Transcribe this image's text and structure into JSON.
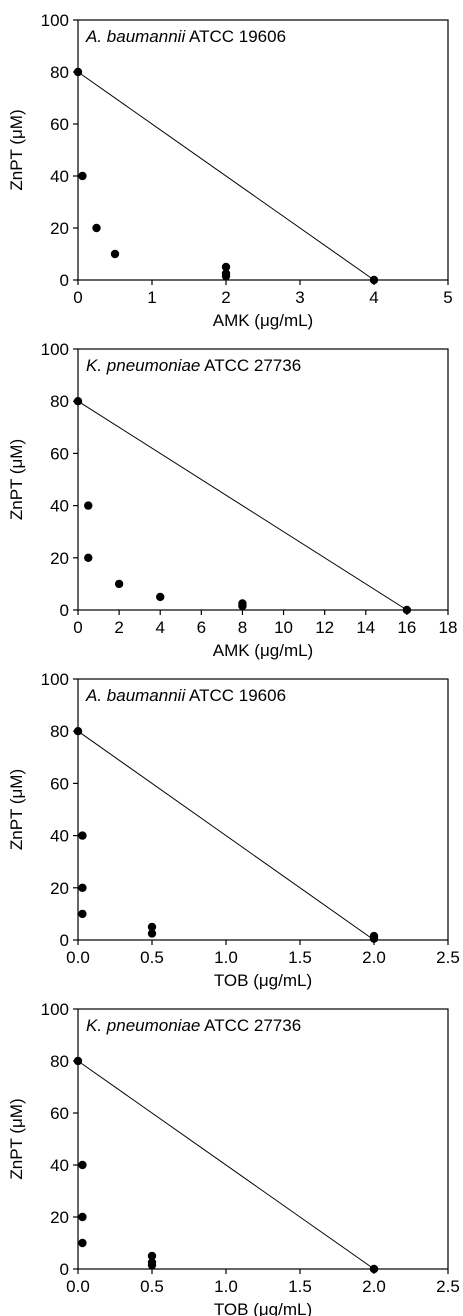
{
  "chart_data": [
    {
      "type": "scatter",
      "title_italic": "A. baumannii",
      "title_rest": " ATCC 19606",
      "xlabel": "AMK (μg/mL)",
      "ylabel": "ZnPT (μM)",
      "xlim": [
        0,
        5
      ],
      "ylim": [
        0,
        100
      ],
      "xticks": [
        0,
        1,
        2,
        3,
        4,
        5
      ],
      "xtick_labels": [
        "0",
        "1",
        "2",
        "3",
        "4",
        "5"
      ],
      "yticks": [
        0,
        20,
        40,
        60,
        80,
        100
      ],
      "ytick_labels": [
        "0",
        "20",
        "40",
        "60",
        "80",
        "100"
      ],
      "points": [
        [
          0,
          80
        ],
        [
          0.06,
          40
        ],
        [
          0.25,
          20
        ],
        [
          0.5,
          10
        ],
        [
          2,
          5
        ],
        [
          2,
          2.5
        ],
        [
          2,
          1.5
        ],
        [
          4,
          0
        ]
      ],
      "line": [
        [
          0,
          80
        ],
        [
          4,
          0
        ]
      ],
      "grid": false
    },
    {
      "type": "scatter",
      "title_italic": "K. pneumoniae",
      "title_rest": " ATCC 27736",
      "xlabel": "AMK (μg/mL)",
      "ylabel": "ZnPT (μM)",
      "xlim": [
        0,
        18
      ],
      "ylim": [
        0,
        100
      ],
      "xticks": [
        0,
        2,
        4,
        6,
        8,
        10,
        12,
        14,
        16,
        18
      ],
      "xtick_labels": [
        "0",
        "2",
        "4",
        "6",
        "8",
        "10",
        "12",
        "14",
        "16",
        "18"
      ],
      "yticks": [
        0,
        20,
        40,
        60,
        80,
        100
      ],
      "ytick_labels": [
        "0",
        "20",
        "40",
        "60",
        "80",
        "100"
      ],
      "points": [
        [
          0,
          80
        ],
        [
          0.5,
          40
        ],
        [
          0.5,
          20
        ],
        [
          2,
          10
        ],
        [
          4,
          5
        ],
        [
          8,
          2.5
        ],
        [
          8,
          1.5
        ],
        [
          16,
          0
        ]
      ],
      "line": [
        [
          0,
          80
        ],
        [
          16,
          0
        ]
      ],
      "grid": false
    },
    {
      "type": "scatter",
      "title_italic": "A. baumannii",
      "title_rest": " ATCC 19606",
      "xlabel": "TOB (μg/mL)",
      "ylabel": "ZnPT (μM)",
      "xlim": [
        0,
        2.5
      ],
      "ylim": [
        0,
        100
      ],
      "xticks": [
        0,
        0.5,
        1,
        1.5,
        2,
        2.5
      ],
      "xtick_labels": [
        "0.0",
        "0.5",
        "1.0",
        "1.5",
        "2.0",
        "2.5"
      ],
      "yticks": [
        0,
        20,
        40,
        60,
        80,
        100
      ],
      "ytick_labels": [
        "0",
        "20",
        "40",
        "60",
        "80",
        "100"
      ],
      "points": [
        [
          0,
          80
        ],
        [
          0.03,
          40
        ],
        [
          0.03,
          20
        ],
        [
          0.03,
          10
        ],
        [
          0.5,
          5
        ],
        [
          0.5,
          2.5
        ],
        [
          2,
          1.5
        ],
        [
          2,
          0.5
        ]
      ],
      "line": [
        [
          0,
          80
        ],
        [
          2,
          0
        ]
      ],
      "grid": false
    },
    {
      "type": "scatter",
      "title_italic": "K. pneumoniae",
      "title_rest": " ATCC 27736",
      "xlabel": "TOB (μg/mL)",
      "ylabel": "ZnPT (μM)",
      "xlim": [
        0,
        2.5
      ],
      "ylim": [
        0,
        100
      ],
      "xticks": [
        0,
        0.5,
        1,
        1.5,
        2,
        2.5
      ],
      "xtick_labels": [
        "0.0",
        "0.5",
        "1.0",
        "1.5",
        "2.0",
        "2.5"
      ],
      "yticks": [
        0,
        20,
        40,
        60,
        80,
        100
      ],
      "ytick_labels": [
        "0",
        "20",
        "40",
        "60",
        "80",
        "100"
      ],
      "points": [
        [
          0,
          80
        ],
        [
          0.03,
          40
        ],
        [
          0.03,
          20
        ],
        [
          0.03,
          10
        ],
        [
          0.5,
          5
        ],
        [
          0.5,
          2.5
        ],
        [
          0.5,
          1.5
        ],
        [
          2,
          0
        ]
      ],
      "line": [
        [
          0,
          80
        ],
        [
          2,
          0
        ]
      ],
      "grid": false
    }
  ]
}
